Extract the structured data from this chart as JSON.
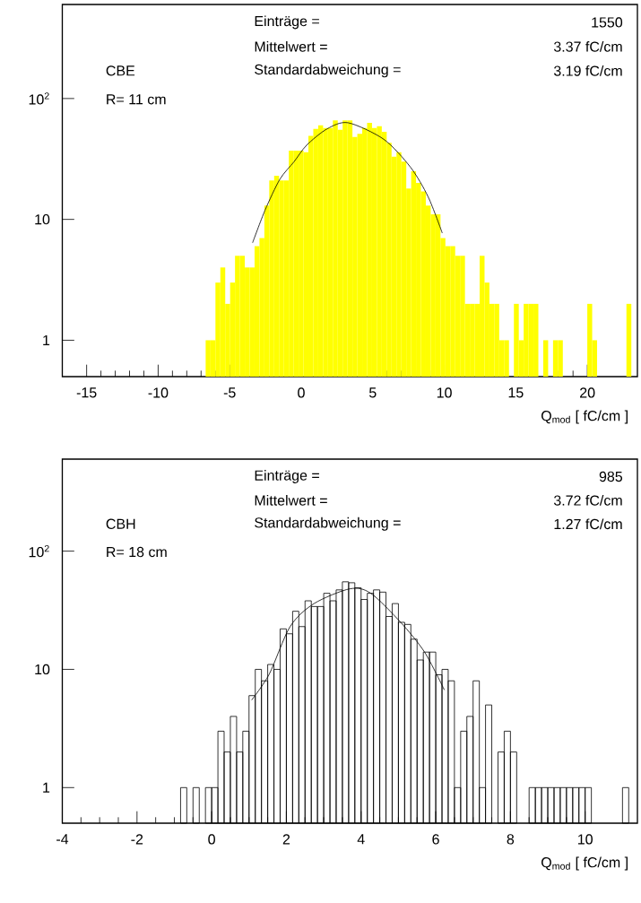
{
  "chart_data": [
    {
      "type": "histogram",
      "xlabel": "Q$_{mod}$ [ fC/cm ]",
      "log": "y",
      "xlim": [
        -16.7,
        23.5
      ],
      "ylim": [
        0.5,
        600
      ],
      "xticks": [
        -15,
        -10,
        -5,
        0,
        5,
        10,
        15,
        20
      ],
      "yticks": [
        1,
        10,
        {
          "value": 100,
          "label": "10$^{2}$"
        }
      ],
      "annotations": [
        "Einträge =",
        "1550",
        "Mittelwert =",
        "3.37 fC/cm",
        "Standardabweichung =",
        "3.19 fC/cm",
        "CBE",
        "R= 11 cm"
      ],
      "bins": [
        -6.68,
        -6.338,
        -5.996,
        -5.654,
        -5.312,
        -4.97,
        -4.628,
        -4.286,
        -3.944,
        -3.602,
        -3.26,
        -2.918,
        -2.576,
        -2.234,
        -1.892,
        -1.55,
        -1.208,
        -0.866,
        -0.524,
        -0.182,
        0.16,
        0.502,
        0.844,
        1.186,
        1.528,
        1.87,
        2.212,
        2.554,
        2.896,
        3.238,
        3.58,
        3.922,
        4.264,
        4.606,
        4.948,
        5.29,
        5.632,
        5.974,
        6.316,
        6.658,
        7.0,
        7.342,
        7.684,
        8.026,
        8.368,
        8.71,
        9.052,
        9.394,
        9.736,
        10.078,
        10.42,
        10.762,
        11.104,
        11.446,
        11.788,
        12.13,
        12.472,
        12.814,
        13.156,
        13.498,
        13.84,
        14.182,
        14.524,
        14.866,
        15.208,
        15.55,
        15.892,
        16.234,
        16.576,
        16.918,
        17.26,
        17.602,
        17.944,
        18.286,
        18.628,
        18.97,
        19.312,
        19.654,
        19.996,
        20.338,
        20.68,
        21.022,
        21.364,
        21.706,
        22.048,
        22.39,
        22.732,
        23.074
      ],
      "series": [
        {
          "color": "#ffff00",
          "values": [
            1,
            1,
            3,
            4,
            2,
            3,
            5,
            5,
            4,
            4,
            6,
            7,
            13,
            21,
            23,
            21,
            21,
            37,
            37,
            37,
            36,
            49,
            56,
            60,
            57,
            57,
            66,
            55,
            66,
            66,
            48,
            51,
            57,
            63,
            57,
            59,
            53,
            43,
            33,
            36,
            30,
            18,
            25,
            20,
            17,
            13,
            11,
            11,
            7,
            6,
            6,
            5,
            5,
            2,
            2,
            2,
            5,
            3,
            2,
            2,
            1,
            1,
            null,
            2,
            1,
            2,
            2,
            2,
            null,
            1,
            null,
            1,
            1,
            null,
            null,
            null,
            null,
            null,
            2,
            1,
            null,
            null,
            null,
            null,
            null,
            null,
            2
          ]
        },
        {
          "type": "line",
          "color": "#000000",
          "x": [
            -3.4,
            -2.53,
            -1.49,
            -0.5,
            0.37,
            1.8,
            3.28,
            5.77,
            7.64,
            8.88,
            9.86
          ],
          "values": [
            6.4,
            11.9,
            21.5,
            30,
            41,
            56,
            63,
            46,
            27,
            15.3,
            7.7
          ]
        }
      ]
    },
    {
      "type": "histogram",
      "xlabel": "Q$_{mod}$ [ fC/cm ]",
      "log": "y",
      "xlim": [
        -4,
        11.4
      ],
      "ylim": [
        0.5,
        600
      ],
      "xticks": [
        -4,
        -2,
        0,
        2,
        4,
        6,
        8,
        10
      ],
      "yticks": [
        1,
        10,
        {
          "value": 100,
          "label": "10$^{2}$"
        }
      ],
      "annotations": [
        "Einträge =",
        "985",
        "Mittelwert =",
        "3.72 fC/cm",
        "Standardabweichung =",
        "1.27 fC/cm",
        "CBH",
        "R= 18 cm"
      ],
      "bins": [
        -0.833,
        -0.667,
        -0.5,
        -0.333,
        -0.167,
        0,
        0.167,
        0.333,
        0.5,
        0.667,
        0.833,
        1,
        1.167,
        1.333,
        1.5,
        1.667,
        1.833,
        2,
        2.167,
        2.333,
        2.5,
        2.667,
        2.833,
        3,
        3.167,
        3.333,
        3.5,
        3.667,
        3.833,
        4,
        4.167,
        4.333,
        4.5,
        4.667,
        4.833,
        5,
        5.167,
        5.333,
        5.5,
        5.667,
        5.833,
        6,
        6.167,
        6.333,
        6.5,
        6.667,
        6.833,
        7,
        7.167,
        7.333,
        7.5,
        7.667,
        7.833,
        8,
        8.167,
        8.333,
        8.5,
        8.667,
        8.833,
        9,
        9.167,
        9.333,
        9.5,
        9.667,
        9.833,
        10,
        10.167,
        10.333,
        10.5,
        10.667,
        10.833,
        11,
        11.167
      ],
      "series": [
        {
          "color": "#000000",
          "values": [
            1,
            null,
            1,
            null,
            1,
            1,
            3,
            2,
            4,
            2,
            3,
            6,
            10,
            8,
            11,
            10,
            22,
            20,
            31,
            23,
            38,
            34,
            34,
            44,
            38,
            47,
            55,
            54,
            49,
            39,
            44,
            47,
            45,
            28,
            36,
            25,
            24,
            18,
            12,
            14,
            14,
            9,
            10,
            8,
            1,
            3,
            4,
            8,
            1,
            5,
            null,
            2,
            3,
            2,
            null,
            null,
            1,
            1,
            1,
            1,
            1,
            1,
            1,
            1,
            1,
            1,
            null,
            null,
            null,
            null,
            null,
            1
          ]
        },
        {
          "type": "line",
          "color": "#000000",
          "x": [
            1.07,
            1.54,
            2.1,
            2.74,
            3.7,
            4.26,
            5.06,
            5.7,
            6.23
          ],
          "values": [
            5.5,
            9.1,
            23,
            36,
            48,
            44,
            25,
            14,
            6.7
          ]
        }
      ]
    }
  ]
}
